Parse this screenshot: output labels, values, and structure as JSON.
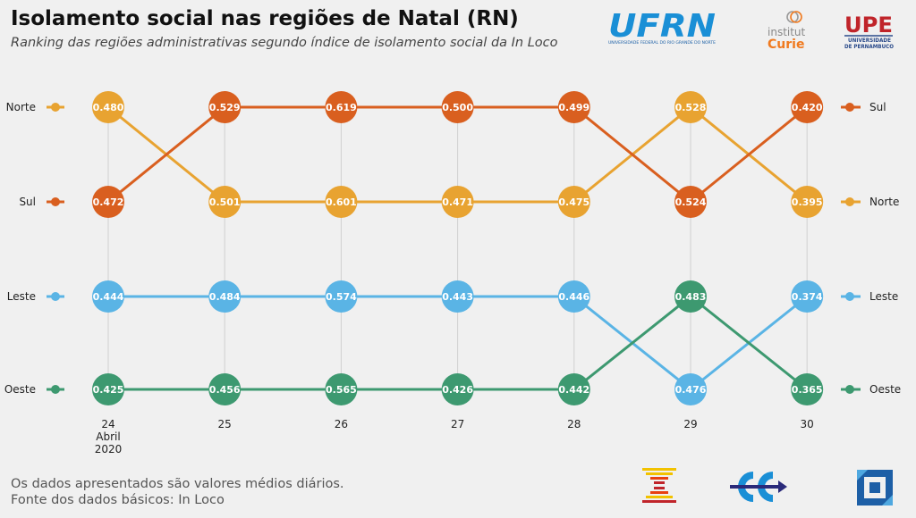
{
  "title": "Isolamento social nas regiões de Natal (RN)",
  "subtitle": "Ranking das regiões administrativas segundo índice de isolamento social da In Loco",
  "footer": {
    "line1": "Os dados apresentados são valores médios diários.",
    "line2": "Fonte dos dados básicos: In Loco"
  },
  "logos": {
    "ufrn": {
      "text": "UFRN",
      "subtext": "UNIVERSIDADE FEDERAL DO RIO GRANDE DO NORTE"
    },
    "curie": {
      "line1": "institut",
      "line2": "Curie"
    },
    "upe": {
      "text": "UPE",
      "line1": "UNIVERSIDADE",
      "line2": "DE PERNAMBUCO"
    }
  },
  "chart_data": {
    "type": "line",
    "subtype": "bump",
    "x": [
      "24",
      "25",
      "26",
      "27",
      "28",
      "29",
      "30"
    ],
    "x_first_sublabels": [
      "Abril",
      "2020"
    ],
    "series": [
      {
        "name": "Norte",
        "color": "#E8A331",
        "ranks": [
          1,
          2,
          2,
          2,
          2,
          1,
          2
        ],
        "values": [
          0.48,
          0.501,
          0.601,
          0.471,
          0.475,
          0.528,
          0.395
        ]
      },
      {
        "name": "Sul",
        "color": "#D95F1F",
        "ranks": [
          2,
          1,
          1,
          1,
          1,
          2,
          1
        ],
        "values": [
          0.472,
          0.529,
          0.619,
          0.5,
          0.499,
          0.524,
          0.42
        ]
      },
      {
        "name": "Leste",
        "color": "#5AB4E5",
        "ranks": [
          3,
          3,
          3,
          3,
          3,
          4,
          3
        ],
        "values": [
          0.444,
          0.484,
          0.574,
          0.443,
          0.446,
          0.476,
          0.374
        ]
      },
      {
        "name": "Oeste",
        "color": "#3D9970",
        "ranks": [
          4,
          4,
          4,
          4,
          4,
          3,
          4
        ],
        "values": [
          0.425,
          0.456,
          0.565,
          0.426,
          0.442,
          0.483,
          0.365
        ]
      }
    ],
    "left_labels": [
      "Norte",
      "Sul",
      "Leste",
      "Oeste"
    ],
    "right_labels": [
      "Sul",
      "Norte",
      "Leste",
      "Oeste"
    ],
    "y_axis": "rank (1 at top)",
    "grid": "vertical"
  }
}
